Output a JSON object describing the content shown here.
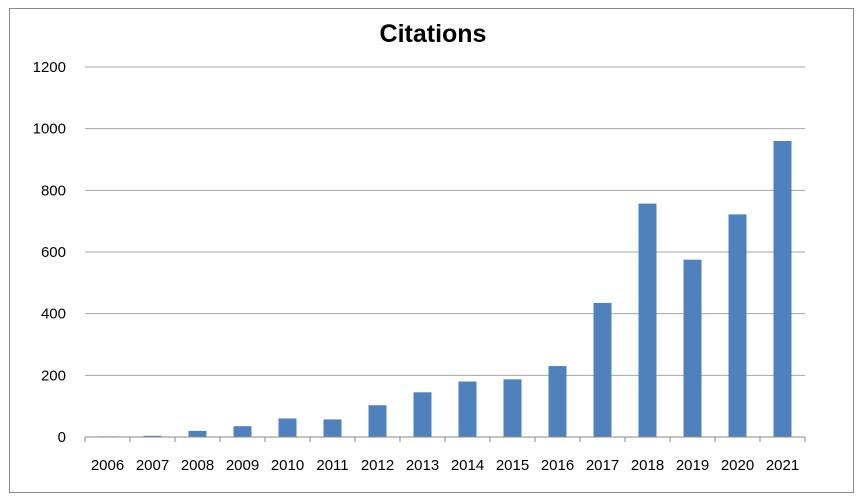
{
  "chart_data": {
    "type": "bar",
    "title": "Citations",
    "xlabel": "",
    "ylabel": "",
    "ylim": [
      0,
      1200
    ],
    "yticks": [
      0,
      200,
      400,
      600,
      800,
      1000,
      1200
    ],
    "grid": true,
    "legend": "none",
    "bar_color": "#4F81BD",
    "categories": [
      "2006",
      "2007",
      "2008",
      "2009",
      "2010",
      "2011",
      "2012",
      "2013",
      "2014",
      "2015",
      "2016",
      "2017",
      "2018",
      "2019",
      "2020",
      "2021"
    ],
    "values": [
      2,
      4,
      20,
      35,
      60,
      57,
      103,
      145,
      180,
      187,
      230,
      435,
      757,
      575,
      722,
      960
    ]
  }
}
